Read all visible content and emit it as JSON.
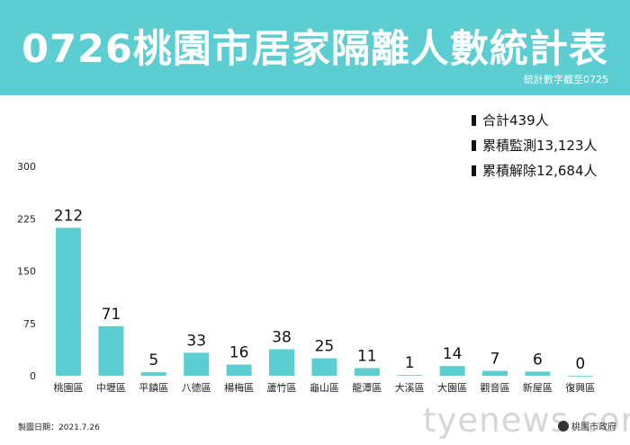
{
  "header": {
    "title": "0726桃園市居家隔離人數統計表",
    "subtitle": "統計數字截至0725",
    "background_color": "#5ccdd0"
  },
  "summary": [
    "合計439人",
    "累積監測13,123人",
    "累積解除12,684人"
  ],
  "footer": {
    "date": "製圖日期：2021.7.26",
    "watermark": "tyenews.com",
    "brand": "桃園市政府"
  },
  "chart_data": {
    "type": "bar",
    "categories": [
      "桃園區",
      "中壢區",
      "平鎮區",
      "八德區",
      "楊梅區",
      "蘆竹區",
      "龜山區",
      "龍潭區",
      "大溪區",
      "大園區",
      "觀音區",
      "新屋區",
      "復興區"
    ],
    "values": [
      212,
      71,
      5,
      33,
      16,
      38,
      25,
      11,
      1,
      14,
      7,
      6,
      0
    ],
    "ylim": [
      0,
      300
    ],
    "yticks": [
      0,
      75,
      150,
      225,
      300
    ],
    "bar_color": "#5ccdd0",
    "grid": false
  }
}
